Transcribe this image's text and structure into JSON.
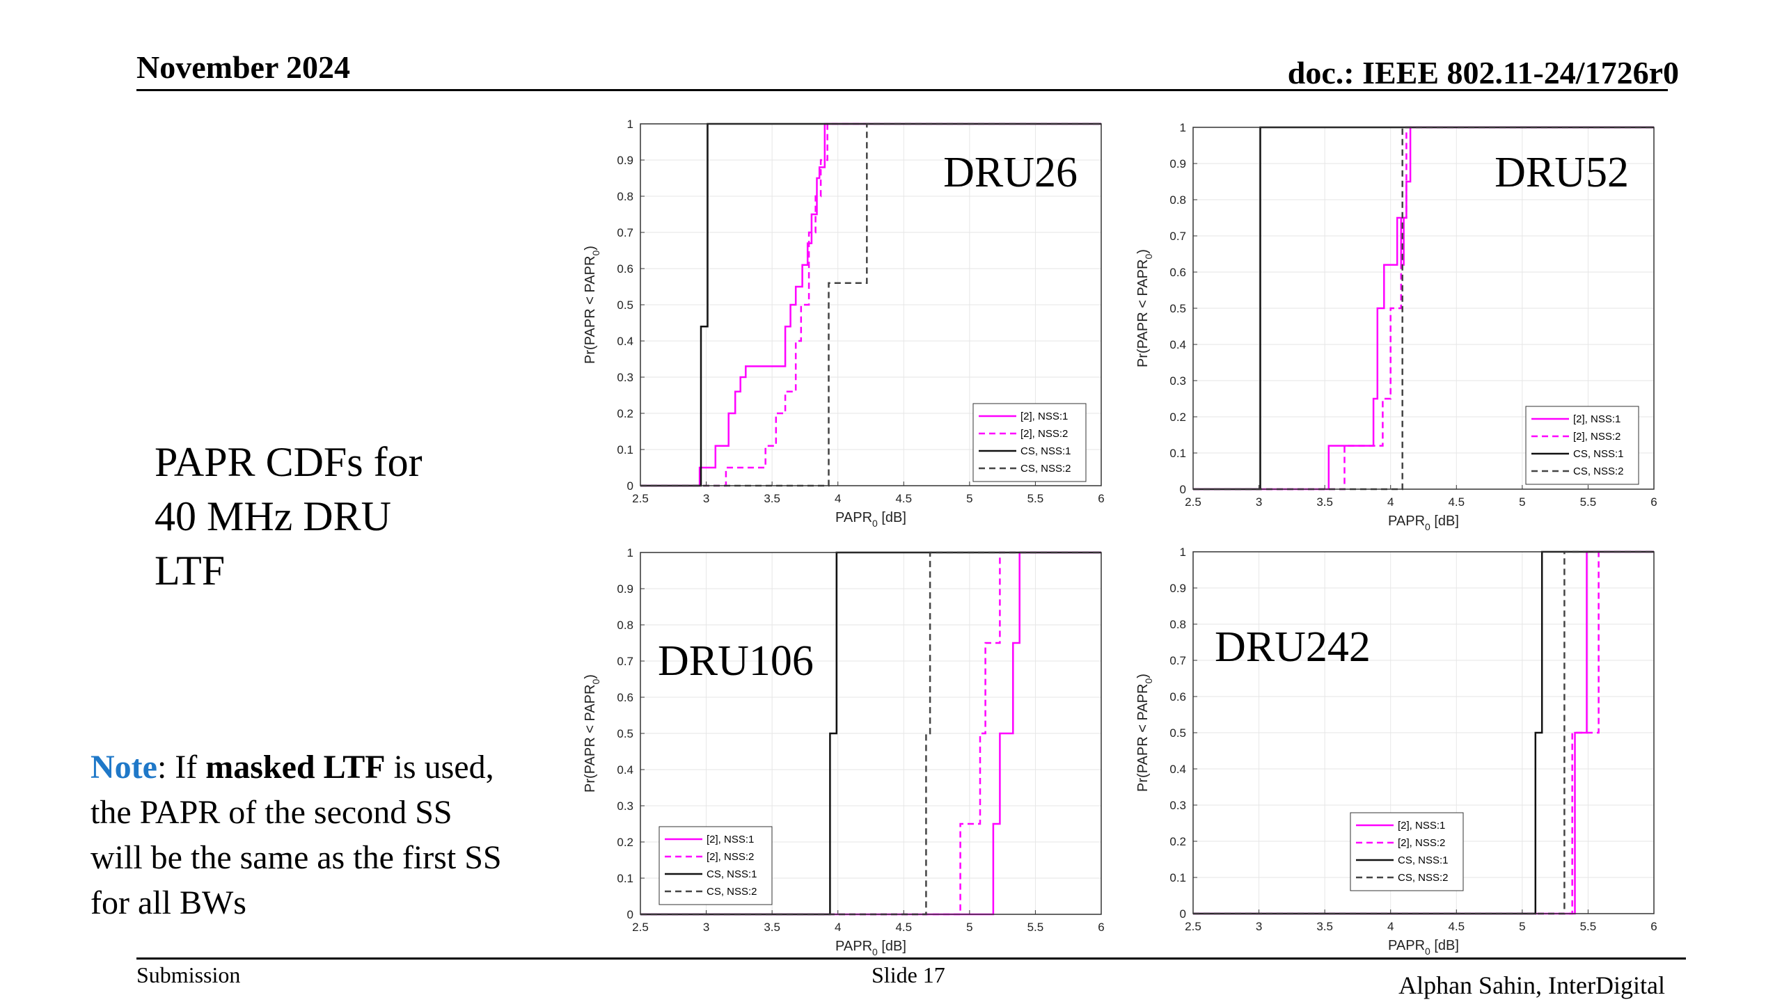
{
  "header": {
    "date": "November 2024",
    "doc": "doc.: IEEE 802.11-24/1726r0"
  },
  "slide_title_lines": [
    "PAPR CDFs for",
    "40 MHz DRU",
    "LTF"
  ],
  "note": {
    "label": "Note",
    "p1": ": If ",
    "bold": "masked LTF",
    "p2": " is used,",
    "line2": "the PAPR of the second SS",
    "line3": "will be the same as the first SS",
    "line4": "for all BWs"
  },
  "footer": {
    "left": "Submission",
    "center": "Slide 17",
    "right": "Alphan Sahin, InterDigital"
  },
  "colors": {
    "magenta": "#ff00ff",
    "black": "#111111",
    "gray": "#444444",
    "grid": "#e6e6e6"
  },
  "chart_data": [
    {
      "type": "line",
      "title": "DRU26",
      "xlabel": "PAPR",
      "xlabel_sub": "0",
      "xlabel_unit": " [dB]",
      "ylabel": "Pr(PAPR < PAPR",
      "ylabel_sub": "0",
      "ylabel_end": ")",
      "xlim": [
        2.5,
        6
      ],
      "ylim": [
        0,
        1
      ],
      "xticks": [
        "2.5",
        "3",
        "3.5",
        "4",
        "4.5",
        "5",
        "5.5",
        "6"
      ],
      "yticks": [
        "0",
        "0.1",
        "0.2",
        "0.3",
        "0.4",
        "0.5",
        "0.6",
        "0.7",
        "0.8",
        "0.9",
        "1"
      ],
      "legend_position": "lower-right",
      "series": [
        {
          "name": "[2], NSS:1",
          "style": "magenta-solid",
          "x": [
            2.5,
            2.95,
            2.95,
            3.07,
            3.07,
            3.17,
            3.17,
            3.22,
            3.22,
            3.26,
            3.26,
            3.3,
            3.3,
            3.37,
            3.37,
            3.6,
            3.6,
            3.64,
            3.64,
            3.68,
            3.68,
            3.73,
            3.73,
            3.77,
            3.77,
            3.8,
            3.8,
            3.84,
            3.84,
            3.86,
            3.86,
            3.9,
            3.9,
            6
          ],
          "y": [
            0,
            0,
            0.05,
            0.05,
            0.11,
            0.11,
            0.2,
            0.2,
            0.26,
            0.26,
            0.3,
            0.3,
            0.33,
            0.33,
            0.33,
            0.33,
            0.44,
            0.44,
            0.5,
            0.5,
            0.55,
            0.55,
            0.61,
            0.61,
            0.67,
            0.67,
            0.75,
            0.75,
            0.85,
            0.85,
            0.88,
            0.88,
            1,
            1
          ]
        },
        {
          "name": "[2], NSS:2",
          "style": "magenta-dashed",
          "x": [
            2.5,
            3.15,
            3.15,
            3.45,
            3.45,
            3.53,
            3.53,
            3.6,
            3.6,
            3.68,
            3.68,
            3.72,
            3.72,
            3.78,
            3.78,
            3.83,
            3.83,
            3.87,
            3.87,
            3.92,
            3.92,
            6
          ],
          "y": [
            0,
            0,
            0.05,
            0.05,
            0.11,
            0.11,
            0.2,
            0.2,
            0.26,
            0.26,
            0.4,
            0.4,
            0.5,
            0.5,
            0.7,
            0.7,
            0.8,
            0.8,
            0.9,
            0.9,
            1,
            1
          ]
        },
        {
          "name": "CS, NSS:1",
          "style": "black-solid",
          "x": [
            2.5,
            2.96,
            2.96,
            3.01,
            3.01,
            6
          ],
          "y": [
            0,
            0,
            0.44,
            0.44,
            1,
            1
          ]
        },
        {
          "name": "CS, NSS:2",
          "style": "gray-dashed",
          "x": [
            2.5,
            3.93,
            3.93,
            4.22,
            4.22,
            6
          ],
          "y": [
            0,
            0,
            0.56,
            0.56,
            1,
            1
          ]
        }
      ]
    },
    {
      "type": "line",
      "title": "DRU52",
      "xlabel": "PAPR",
      "xlabel_sub": "0",
      "xlabel_unit": " [dB]",
      "ylabel": "Pr(PAPR < PAPR",
      "ylabel_sub": "0",
      "ylabel_end": ")",
      "xlim": [
        2.5,
        6
      ],
      "ylim": [
        0,
        1
      ],
      "xticks": [
        "2.5",
        "3",
        "3.5",
        "4",
        "4.5",
        "5",
        "5.5",
        "6"
      ],
      "yticks": [
        "0",
        "0.1",
        "0.2",
        "0.3",
        "0.4",
        "0.5",
        "0.6",
        "0.7",
        "0.8",
        "0.9",
        "1"
      ],
      "legend_position": "lower-right",
      "series": [
        {
          "name": "[2], NSS:1",
          "style": "magenta-solid",
          "x": [
            2.5,
            3.53,
            3.53,
            3.87,
            3.87,
            3.9,
            3.9,
            3.95,
            3.95,
            4.05,
            4.05,
            4.08,
            4.08,
            4.1,
            4.1,
            4.12,
            4.12,
            4.15,
            4.15,
            6
          ],
          "y": [
            0,
            0,
            0.12,
            0.12,
            0.25,
            0.25,
            0.5,
            0.5,
            0.62,
            0.62,
            0.75,
            0.75,
            0.62,
            0.62,
            0.75,
            0.75,
            0.85,
            0.85,
            1,
            1
          ]
        },
        {
          "name": "[2], NSS:2",
          "style": "magenta-dashed",
          "x": [
            2.5,
            3.65,
            3.65,
            3.94,
            3.94,
            4.0,
            4.0,
            4.08,
            4.08,
            4.12,
            4.12,
            6
          ],
          "y": [
            0,
            0,
            0.12,
            0.12,
            0.25,
            0.25,
            0.5,
            0.5,
            0.75,
            0.75,
            1,
            1
          ]
        },
        {
          "name": "CS, NSS:1",
          "style": "black-solid",
          "x": [
            2.5,
            3.01,
            3.01,
            6
          ],
          "y": [
            0,
            0,
            1,
            1
          ]
        },
        {
          "name": "CS, NSS:2",
          "style": "gray-dashed",
          "x": [
            2.5,
            4.09,
            4.09,
            6
          ],
          "y": [
            0,
            0,
            1,
            1
          ]
        }
      ]
    },
    {
      "type": "line",
      "title": "DRU106",
      "xlabel": "PAPR",
      "xlabel_sub": "0",
      "xlabel_unit": " [dB]",
      "ylabel": "Pr(PAPR < PAPR",
      "ylabel_sub": "0",
      "ylabel_end": ")",
      "xlim": [
        2.5,
        6
      ],
      "ylim": [
        0,
        1
      ],
      "xticks": [
        "2.5",
        "3",
        "3.5",
        "4",
        "4.5",
        "5",
        "5.5",
        "6"
      ],
      "yticks": [
        "0",
        "0.1",
        "0.2",
        "0.3",
        "0.4",
        "0.5",
        "0.6",
        "0.7",
        "0.8",
        "0.9",
        "1"
      ],
      "legend_position": "lower-left",
      "series": [
        {
          "name": "[2], NSS:1",
          "style": "magenta-solid",
          "x": [
            2.5,
            5.18,
            5.18,
            5.23,
            5.23,
            5.33,
            5.33,
            5.38,
            5.38,
            6
          ],
          "y": [
            0,
            0,
            0.25,
            0.25,
            0.5,
            0.5,
            0.75,
            0.75,
            1,
            1
          ]
        },
        {
          "name": "[2], NSS:2",
          "style": "magenta-dashed",
          "x": [
            2.5,
            4.93,
            4.93,
            5.08,
            5.08,
            5.12,
            5.12,
            5.23,
            5.23,
            6
          ],
          "y": [
            0,
            0,
            0.25,
            0.25,
            0.5,
            0.5,
            0.75,
            0.75,
            1,
            1
          ]
        },
        {
          "name": "CS, NSS:1",
          "style": "black-solid",
          "x": [
            2.5,
            3.94,
            3.94,
            3.99,
            3.99,
            6
          ],
          "y": [
            0,
            0,
            0.5,
            0.5,
            1,
            1
          ]
        },
        {
          "name": "CS, NSS:2",
          "style": "gray-dashed",
          "x": [
            2.5,
            4.67,
            4.67,
            4.7,
            4.7,
            6
          ],
          "y": [
            0,
            0,
            0.5,
            0.5,
            1,
            1
          ]
        }
      ]
    },
    {
      "type": "line",
      "title": "DRU242",
      "xlabel": "PAPR",
      "xlabel_sub": "0",
      "xlabel_unit": " [dB]",
      "ylabel": "Pr(PAPR < PAPR",
      "ylabel_sub": "0",
      "ylabel_end": ")",
      "xlim": [
        2.5,
        6
      ],
      "ylim": [
        0,
        1
      ],
      "xticks": [
        "2.5",
        "3",
        "3.5",
        "4",
        "4.5",
        "5",
        "5.5",
        "6"
      ],
      "yticks": [
        "0",
        "0.1",
        "0.2",
        "0.3",
        "0.4",
        "0.5",
        "0.6",
        "0.7",
        "0.8",
        "0.9",
        "1"
      ],
      "legend_position": "lower-center",
      "series": [
        {
          "name": "[2], NSS:1",
          "style": "magenta-solid",
          "x": [
            2.5,
            5.4,
            5.4,
            5.49,
            5.49,
            6
          ],
          "y": [
            0,
            0,
            0.5,
            0.5,
            1,
            1
          ]
        },
        {
          "name": "[2], NSS:2",
          "style": "magenta-dashed",
          "x": [
            2.5,
            5.38,
            5.38,
            5.58,
            5.58,
            6
          ],
          "y": [
            0,
            0,
            0.5,
            0.5,
            1,
            1
          ]
        },
        {
          "name": "CS, NSS:1",
          "style": "black-solid",
          "x": [
            2.5,
            5.1,
            5.1,
            5.15,
            5.15,
            6
          ],
          "y": [
            0,
            0,
            0.5,
            0.5,
            1,
            1
          ]
        },
        {
          "name": "CS, NSS:2",
          "style": "gray-dashed",
          "x": [
            2.5,
            5.32,
            5.32,
            6
          ],
          "y": [
            0,
            0,
            1,
            1
          ]
        }
      ]
    }
  ]
}
